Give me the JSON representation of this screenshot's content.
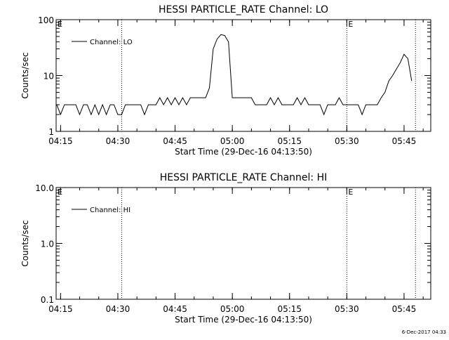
{
  "timestamp": "6-Dec-2017 04:33",
  "chart_data": [
    {
      "type": "line",
      "title": "HESSI PARTICLE_RATE Channel: LO",
      "xlabel": "Start Time (29-Dec-16 04:13:50)",
      "ylabel": "Counts/sec",
      "y_scale": "log",
      "ylim": [
        1,
        100
      ],
      "y_ticks": [
        "1",
        "10",
        "100"
      ],
      "x_range": [
        "04:13:50",
        "05:52:00"
      ],
      "x_ticks": [
        "04:15",
        "04:30",
        "04:45",
        "05:00",
        "05:15",
        "05:30",
        "05:45"
      ],
      "x_tick_minutes": [
        1.17,
        16.17,
        31.17,
        46.17,
        61.17,
        76.17,
        91.17
      ],
      "legend": {
        "label": "Channel: LO",
        "position": "top-left"
      },
      "grid": false,
      "event_markers": [
        {
          "time": "04:31",
          "label": ""
        },
        {
          "time": "05:30",
          "label": "E"
        },
        {
          "time": "05:48",
          "label": ""
        }
      ],
      "corner_label": "E",
      "series": [
        {
          "name": "Channel: LO",
          "color": "#000000",
          "times": [
            "04:14",
            "04:15",
            "04:16",
            "04:17",
            "04:18",
            "04:19",
            "04:20",
            "04:21",
            "04:22",
            "04:23",
            "04:24",
            "04:25",
            "04:26",
            "04:27",
            "04:28",
            "04:29",
            "04:30",
            "04:31",
            "04:32",
            "04:33",
            "04:34",
            "04:35",
            "04:36",
            "04:37",
            "04:38",
            "04:39",
            "04:40",
            "04:41",
            "04:42",
            "04:43",
            "04:44",
            "04:45",
            "04:46",
            "04:47",
            "04:48",
            "04:49",
            "04:50",
            "04:51",
            "04:52",
            "04:53",
            "04:54",
            "04:55",
            "04:56",
            "04:57",
            "04:58",
            "04:59",
            "05:00",
            "05:01",
            "05:02",
            "05:03",
            "05:04",
            "05:05",
            "05:06",
            "05:07",
            "05:08",
            "05:09",
            "05:10",
            "05:11",
            "05:12",
            "05:13",
            "05:14",
            "05:15",
            "05:16",
            "05:17",
            "05:18",
            "05:19",
            "05:20",
            "05:21",
            "05:22",
            "05:23",
            "05:24",
            "05:25",
            "05:26",
            "05:27",
            "05:28",
            "05:29",
            "05:30",
            "05:31",
            "05:32",
            "05:33",
            "05:34",
            "05:35",
            "05:36",
            "05:37",
            "05:38",
            "05:39",
            "05:40",
            "05:41",
            "05:42",
            "05:43",
            "05:44",
            "05:45",
            "05:46",
            "05:47"
          ],
          "values": [
            3,
            2,
            3,
            3,
            3,
            3,
            2,
            3,
            3,
            2,
            3,
            2,
            3,
            2,
            3,
            3,
            2,
            2,
            3,
            3,
            3,
            3,
            3,
            2,
            3,
            3,
            3,
            4,
            3,
            4,
            3,
            4,
            3,
            4,
            3,
            4,
            4,
            4,
            4,
            4,
            6,
            30,
            45,
            54,
            52,
            40,
            4,
            4,
            4,
            4,
            4,
            4,
            3,
            3,
            3,
            3,
            4,
            3,
            4,
            3,
            3,
            3,
            3,
            4,
            3,
            4,
            3,
            3,
            3,
            3,
            2,
            3,
            3,
            3,
            4,
            3,
            3,
            3,
            3,
            3,
            2,
            3,
            3,
            3,
            3,
            4,
            5,
            8,
            10,
            13,
            17,
            24,
            20,
            8
          ]
        }
      ]
    },
    {
      "type": "line",
      "title": "HESSI PARTICLE_RATE Channel: HI",
      "xlabel": "Start Time (29-Dec-16 04:13:50)",
      "ylabel": "Counts/sec",
      "y_scale": "log",
      "ylim": [
        0.1,
        10
      ],
      "y_ticks": [
        "0.1",
        "1.0",
        "10.0"
      ],
      "x_range": [
        "04:13:50",
        "05:52:00"
      ],
      "x_ticks": [
        "04:15",
        "04:30",
        "04:45",
        "05:00",
        "05:15",
        "05:30",
        "05:45"
      ],
      "x_tick_minutes": [
        1.17,
        16.17,
        31.17,
        46.17,
        61.17,
        76.17,
        91.17
      ],
      "legend": {
        "label": "Channel: HI",
        "position": "top-left"
      },
      "grid": false,
      "event_markers": [
        {
          "time": "04:31",
          "label": ""
        },
        {
          "time": "05:30",
          "label": "E"
        },
        {
          "time": "05:48",
          "label": ""
        }
      ],
      "corner_label": "E",
      "series": [
        {
          "name": "Channel: HI",
          "color": "#000000",
          "times": [],
          "values": []
        }
      ]
    }
  ]
}
